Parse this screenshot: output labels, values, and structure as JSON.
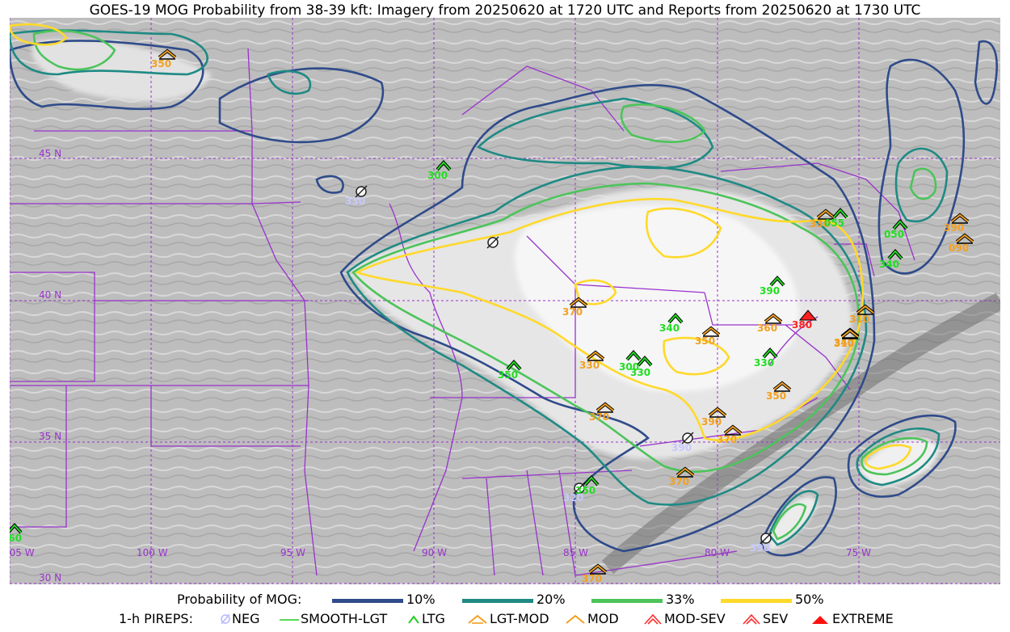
{
  "title": "GOES-19 MOG Probability from 38-39 kft: Imagery from 20250620 at 1720 UTC and Reports from 20250620 at 1730 UTC",
  "map": {
    "latitude_labels": [
      "45 N",
      "40 N",
      "35 N",
      "30 N"
    ],
    "longitude_labels": [
      "105 W",
      "100 W",
      "95 W",
      "90 W",
      "85 W",
      "80 W",
      "75 W"
    ],
    "colors": {
      "border": "#9933cc",
      "background": "#c8c8c8",
      "contour_10": "#2f4b8a",
      "contour_20": "#1f8a84",
      "contour_33": "#4cc45a",
      "contour_50": "#ffd92a",
      "report_green": "#22dd22",
      "report_orange": "#f2a020",
      "report_red": "#ff2020",
      "report_neg": "#c8c8ff"
    },
    "reports": [
      {
        "type": "mod",
        "label": "350"
      },
      {
        "type": "ltg",
        "label": "300"
      },
      {
        "type": "neg",
        "label": "330"
      },
      {
        "type": "neg",
        "label": ""
      },
      {
        "type": "ltg",
        "label": "350"
      },
      {
        "type": "mod",
        "label": "370"
      },
      {
        "type": "mod",
        "label": "330"
      },
      {
        "type": "ltg",
        "label": "300"
      },
      {
        "type": "ltg",
        "label": "330"
      },
      {
        "type": "ltg",
        "label": "340"
      },
      {
        "type": "mod",
        "label": "350"
      },
      {
        "type": "ltg",
        "label": "330"
      },
      {
        "type": "mod",
        "label": "350"
      },
      {
        "type": "mod",
        "label": "370"
      },
      {
        "type": "mod",
        "label": "390"
      },
      {
        "type": "mod",
        "label": "370"
      },
      {
        "type": "mod",
        "label": "370"
      },
      {
        "type": "neg",
        "label": "390"
      },
      {
        "type": "neg",
        "label": "320"
      },
      {
        "type": "ltg",
        "label": "350"
      },
      {
        "type": "mod",
        "label": "370"
      },
      {
        "type": "neg",
        "label": "390"
      },
      {
        "type": "ltg",
        "label": "390"
      },
      {
        "type": "mod",
        "label": "360"
      },
      {
        "type": "extreme",
        "label": "380"
      },
      {
        "type": "mod",
        "label": "330"
      },
      {
        "type": "mod",
        "label": "340"
      },
      {
        "type": "ltg",
        "label": "055"
      },
      {
        "type": "ltg",
        "label": "050"
      },
      {
        "type": "ltg",
        "label": "340"
      },
      {
        "type": "mod",
        "label": "390"
      },
      {
        "type": "mod",
        "label": "090"
      },
      {
        "type": "mod",
        "label": "310"
      },
      {
        "type": "mod",
        "label": "310"
      },
      {
        "type": "ltg",
        "label": "360"
      }
    ]
  },
  "legend": {
    "probability_label": "Probability of MOG:",
    "probability_items": [
      {
        "label": "10%",
        "color": "#2f4b8a"
      },
      {
        "label": "20%",
        "color": "#1f8a84"
      },
      {
        "label": "33%",
        "color": "#4cc45a"
      },
      {
        "label": "50%",
        "color": "#ffd92a"
      }
    ],
    "pireps_label": "1-h PIREPS:",
    "pirep_items": [
      {
        "label": "NEG",
        "icon": "neg-icon",
        "color": "#b8b8ff"
      },
      {
        "label": "SMOOTH-LGT",
        "icon": "smooth-lgt-icon",
        "color": "#22cc22"
      },
      {
        "label": "LTG",
        "icon": "ltg-icon",
        "color": "#22cc22"
      },
      {
        "label": "LGT-MOD",
        "icon": "lgt-mod-icon",
        "color": "#f2a020"
      },
      {
        "label": "MOD",
        "icon": "mod-icon",
        "color": "#f2a020"
      },
      {
        "label": "MOD-SEV",
        "icon": "mod-sev-icon",
        "color": "#ff3030"
      },
      {
        "label": "SEV",
        "icon": "sev-icon",
        "color": "#ff3030"
      },
      {
        "label": "EXTREME",
        "icon": "extreme-icon",
        "color": "#ff1010"
      }
    ]
  }
}
